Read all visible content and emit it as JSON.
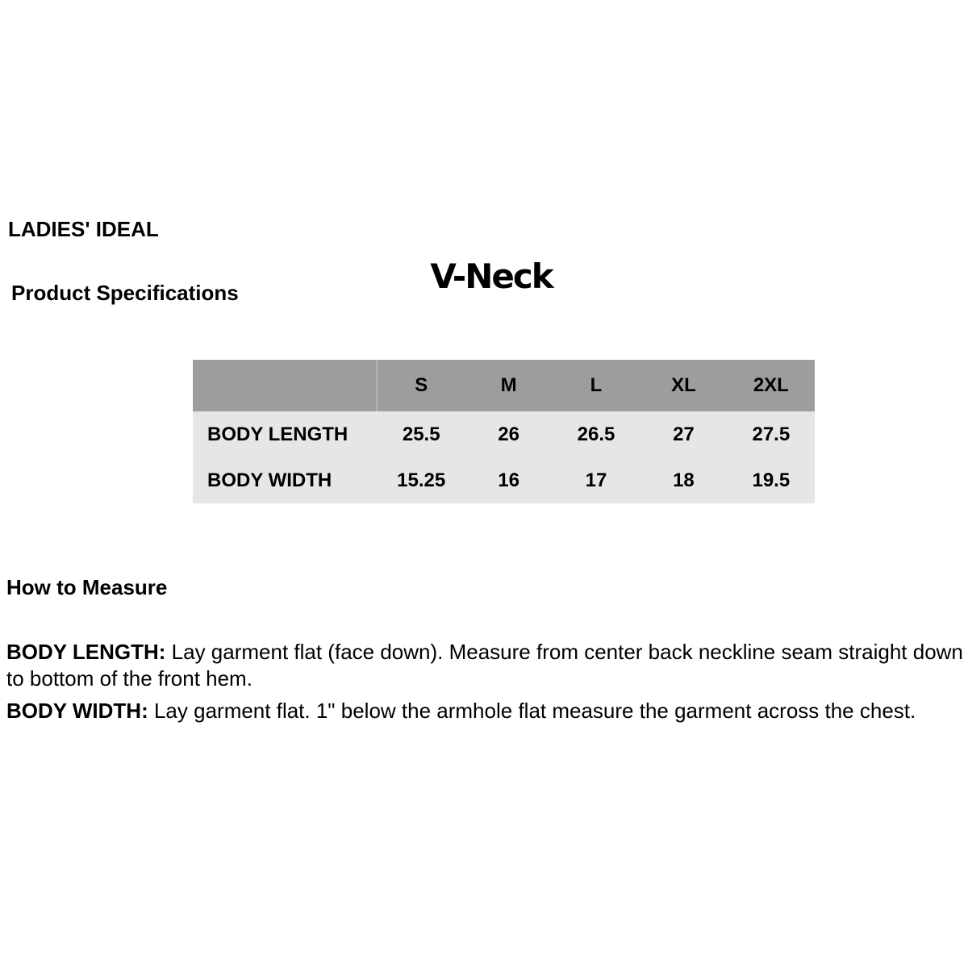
{
  "header": {
    "brand": "LADIES' IDEAL",
    "section_title": "Product Specifications",
    "product_name": "V-Neck"
  },
  "size_table": {
    "header_bg": "#9d9d9f",
    "body_bg": "#e6e6e6",
    "columns": [
      "S",
      "M",
      "L",
      "XL",
      "2XL"
    ],
    "rows": [
      {
        "label": "BODY LENGTH",
        "values": [
          "25.5",
          "26",
          "26.5",
          "27",
          "27.5"
        ]
      },
      {
        "label": "BODY WIDTH",
        "values": [
          "15.25",
          "16",
          "17",
          "18",
          "19.5"
        ]
      }
    ]
  },
  "how_to_measure": {
    "heading": "How to Measure",
    "items": [
      {
        "term": "BODY LENGTH:",
        "definition": "Lay garment flat (face down). Measure from center back neckline seam straight down to bottom of the front hem."
      },
      {
        "term": "BODY WIDTH:",
        "definition": "Lay garment flat. 1\" below the armhole flat measure the garment across the chest."
      }
    ]
  }
}
